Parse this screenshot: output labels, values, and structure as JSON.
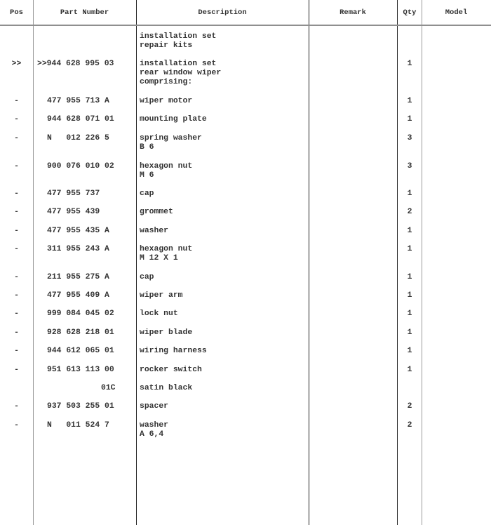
{
  "headers": {
    "pos": "Pos",
    "part_number": "Part Number",
    "description": "Description",
    "remark": "Remark",
    "qty": "Qty",
    "model": "Model"
  },
  "rows": [
    {
      "pos": "",
      "part": "",
      "desc": [
        "installation set",
        "repair kits"
      ],
      "qty": ""
    },
    {
      "pos": ">>",
      "part": ">>944 628 995 03",
      "desc": [
        "installation set",
        "rear window wiper",
        "comprising:"
      ],
      "qty": "1"
    },
    {
      "pos": "-",
      "part": "477 955 713 A",
      "desc": [
        "wiper motor"
      ],
      "qty": "1"
    },
    {
      "pos": "-",
      "part": "944 628 071 01",
      "desc": [
        "mounting plate"
      ],
      "qty": "1"
    },
    {
      "pos": "-",
      "part": "N   012 226 5",
      "desc": [
        "spring washer",
        "B 6"
      ],
      "qty": "3"
    },
    {
      "pos": "-",
      "part": "900 076 010 02",
      "desc": [
        "hexagon nut",
        "M 6"
      ],
      "qty": "3"
    },
    {
      "pos": "-",
      "part": "477 955 737",
      "desc": [
        "cap"
      ],
      "qty": "1"
    },
    {
      "pos": "-",
      "part": "477 955 439",
      "desc": [
        "grommet"
      ],
      "qty": "2"
    },
    {
      "pos": "-",
      "part": "477 955 435 A",
      "desc": [
        "washer"
      ],
      "qty": "1"
    },
    {
      "pos": "-",
      "part": "311 955 243 A",
      "desc": [
        "hexagon nut",
        "M 12 X 1"
      ],
      "qty": "1"
    },
    {
      "pos": "-",
      "part": "211 955 275 A",
      "desc": [
        "cap"
      ],
      "qty": "1"
    },
    {
      "pos": "-",
      "part": "477 955 409 A",
      "desc": [
        "wiper arm"
      ],
      "qty": "1"
    },
    {
      "pos": "-",
      "part": "999 084 045 02",
      "desc": [
        "lock nut"
      ],
      "qty": "1"
    },
    {
      "pos": "-",
      "part": "928 628 218 01",
      "desc": [
        "wiper blade"
      ],
      "qty": "1"
    },
    {
      "pos": "-",
      "part": "944 612 065 01",
      "desc": [
        "wiring harness"
      ],
      "qty": "1"
    },
    {
      "pos": "-",
      "part": "951 613 113 00",
      "desc": [
        "rocker switch"
      ],
      "qty": "1"
    },
    {
      "pos": "",
      "part": "01C",
      "desc": [
        "satin black"
      ],
      "qty": ""
    },
    {
      "pos": "-",
      "part": "937 503 255 01",
      "desc": [
        "spacer"
      ],
      "qty": "2"
    },
    {
      "pos": "-",
      "part": "N   011 524 7",
      "desc": [
        "washer",
        "A 6,4"
      ],
      "qty": "2"
    }
  ]
}
